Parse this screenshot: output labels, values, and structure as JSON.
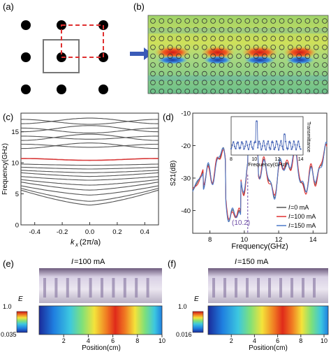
{
  "panels": {
    "a": {
      "label": "(a)"
    },
    "b": {
      "label": "(b)"
    },
    "c": {
      "label": "(c)",
      "ylabel": "Frequency(GHz)",
      "xlabel_k": "k",
      "xlabel_sub": "x",
      "xlabel_unit": "(2π/a)",
      "xticks": [
        "-0.4",
        "-0.2",
        "0.0",
        "0.2",
        "0.4"
      ],
      "yticks": [
        "0",
        "5",
        "10",
        "15"
      ]
    },
    "d": {
      "label": "(d)",
      "ylabel": "S21(dB)",
      "xlabel": "Frequency(GHz)",
      "xticks": [
        "8",
        "10",
        "12",
        "14"
      ],
      "yticks": [
        "-40",
        "-30",
        "-20",
        "-10"
      ],
      "marker_label": "(10.2)",
      "inset_xlabel": "Frequency(GHz)",
      "inset_ylabel": "Transmittance",
      "inset_xticks": [
        "8",
        "10",
        "12",
        "14"
      ],
      "legend": [
        {
          "prefix": "I",
          "text": "=0 mA",
          "color": "#555555"
        },
        {
          "prefix": "I",
          "text": "=100 mA",
          "color": "#e03030"
        },
        {
          "prefix": "I",
          "text": "=150 mA",
          "color": "#4a78c8"
        }
      ]
    },
    "e": {
      "label": "(e)",
      "title_prefix": "I",
      "title": "=100 mA",
      "cbar_label": "E",
      "cbar_max": "1.0",
      "cbar_min": "0.035",
      "xticks": [
        "2",
        "4",
        "6",
        "8",
        "10"
      ],
      "xlabel": "Position(cm)"
    },
    "f": {
      "label": "(f)",
      "title_prefix": "I",
      "title": "=150 mA",
      "cbar_label": "E",
      "cbar_max": "1.0",
      "cbar_min": "0.016",
      "xticks": [
        "2",
        "4",
        "6",
        "8",
        "10"
      ],
      "xlabel": "Position(cm)"
    }
  },
  "chart_data": [
    {
      "type": "line",
      "panel": "c",
      "xlim": [
        -0.5,
        0.5
      ],
      "ylim": [
        0,
        18
      ],
      "highlight_band_color": "#d83a3a",
      "band_color": "#555555",
      "highlight_band": {
        "x": [
          -0.5,
          -0.25,
          0,
          0.25,
          0.5
        ],
        "y": [
          10.7,
          10.6,
          10.4,
          10.6,
          10.7
        ]
      }
    },
    {
      "type": "line",
      "panel": "d",
      "xlim": [
        7,
        14.8
      ],
      "ylim": [
        -47,
        -10
      ],
      "marker_x": 10.2,
      "series": [
        {
          "name": "I=0 mA",
          "color": "#555555"
        },
        {
          "name": "I=100 mA",
          "color": "#e03030"
        },
        {
          "name": "I=150 mA",
          "color": "#4a78c8"
        }
      ]
    }
  ],
  "colors": {
    "arrow": "#3a5bb8",
    "square": "#e03030",
    "dashed": "#e03030"
  }
}
